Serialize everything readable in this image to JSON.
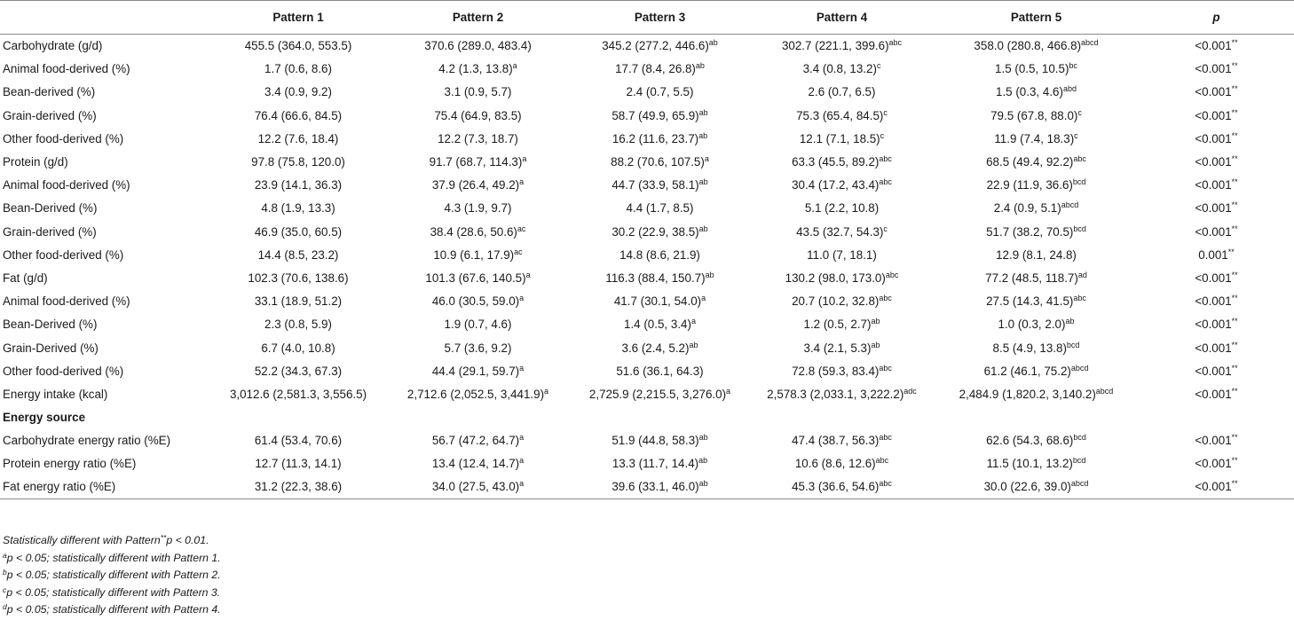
{
  "table": {
    "headers": [
      "",
      "Pattern 1",
      "Pattern 2",
      "Pattern 3",
      "Pattern 4",
      "Pattern 5",
      "p"
    ],
    "rows": [
      {
        "label": "Carbohydrate (g/d)",
        "cells": [
          {
            "v": "455.5 (364.0, 553.5)",
            "s": ""
          },
          {
            "v": "370.6 (289.0, 483.4)",
            "s": ""
          },
          {
            "v": "345.2 (277.2, 446.6)",
            "s": "ab"
          },
          {
            "v": "302.7 (221.1, 399.6)",
            "s": "abc"
          },
          {
            "v": "358.0 (280.8, 466.8)",
            "s": "abcd"
          },
          {
            "v": "<0.001",
            "s": "**"
          }
        ]
      },
      {
        "label": "Animal food-derived (%)",
        "cells": [
          {
            "v": "1.7 (0.6, 8.6)",
            "s": ""
          },
          {
            "v": "4.2 (1.3, 13.8)",
            "s": "a"
          },
          {
            "v": "17.7 (8.4, 26.8)",
            "s": "ab"
          },
          {
            "v": "3.4 (0.8, 13.2)",
            "s": "c"
          },
          {
            "v": "1.5 (0.5, 10.5)",
            "s": "bc"
          },
          {
            "v": "<0.001",
            "s": "**"
          }
        ]
      },
      {
        "label": "Bean-derived (%)",
        "cells": [
          {
            "v": "3.4 (0.9, 9.2)",
            "s": ""
          },
          {
            "v": "3.1 (0.9, 5.7)",
            "s": ""
          },
          {
            "v": "2.4 (0.7, 5.5)",
            "s": ""
          },
          {
            "v": "2.6 (0.7, 6.5)",
            "s": ""
          },
          {
            "v": "1.5 (0.3, 4.6)",
            "s": "abd"
          },
          {
            "v": "<0.001",
            "s": "**"
          }
        ]
      },
      {
        "label": "Grain-derived (%)",
        "cells": [
          {
            "v": "76.4 (66.6, 84.5)",
            "s": ""
          },
          {
            "v": "75.4 (64.9, 83.5)",
            "s": ""
          },
          {
            "v": "58.7 (49.9, 65.9)",
            "s": "ab"
          },
          {
            "v": "75.3 (65.4, 84.5)",
            "s": "c"
          },
          {
            "v": "79.5 (67.8, 88.0)",
            "s": "c"
          },
          {
            "v": "<0.001",
            "s": "**"
          }
        ]
      },
      {
        "label": "Other food-derived (%)",
        "cells": [
          {
            "v": "12.2 (7.6, 18.4)",
            "s": ""
          },
          {
            "v": "12.2 (7.3, 18.7)",
            "s": ""
          },
          {
            "v": "16.2 (11.6, 23.7)",
            "s": "ab"
          },
          {
            "v": "12.1 (7.1, 18.5)",
            "s": "c"
          },
          {
            "v": "11.9 (7.4, 18.3)",
            "s": "c"
          },
          {
            "v": "<0.001",
            "s": "**"
          }
        ]
      },
      {
        "label": "Protein (g/d)",
        "cells": [
          {
            "v": "97.8 (75.8, 120.0)",
            "s": ""
          },
          {
            "v": "91.7 (68.7, 114.3)",
            "s": "a"
          },
          {
            "v": "88.2 (70.6, 107.5)",
            "s": "a"
          },
          {
            "v": "63.3 (45.5, 89.2)",
            "s": "abc"
          },
          {
            "v": "68.5 (49.4, 92.2)",
            "s": "abc"
          },
          {
            "v": "<0.001",
            "s": "**"
          }
        ]
      },
      {
        "label": "Animal food-derived (%)",
        "cells": [
          {
            "v": "23.9 (14.1, 36.3)",
            "s": ""
          },
          {
            "v": "37.9 (26.4, 49.2)",
            "s": "a"
          },
          {
            "v": "44.7 (33.9, 58.1)",
            "s": "ab"
          },
          {
            "v": "30.4 (17.2, 43.4)",
            "s": "abc"
          },
          {
            "v": "22.9 (11.9, 36.6)",
            "s": "bcd"
          },
          {
            "v": "<0.001",
            "s": "**"
          }
        ]
      },
      {
        "label": "Bean-Derived (%)",
        "cells": [
          {
            "v": "4.8 (1.9, 13.3)",
            "s": ""
          },
          {
            "v": "4.3 (1.9, 9.7)",
            "s": ""
          },
          {
            "v": "4.4 (1.7, 8.5)",
            "s": ""
          },
          {
            "v": "5.1 (2.2, 10.8)",
            "s": ""
          },
          {
            "v": "2.4 (0.9, 5.1)",
            "s": "abcd"
          },
          {
            "v": "<0.001",
            "s": "**"
          }
        ]
      },
      {
        "label": "Grain-derived (%)",
        "cells": [
          {
            "v": "46.9 (35.0, 60.5)",
            "s": ""
          },
          {
            "v": "38.4 (28.6, 50.6)",
            "s": "ac"
          },
          {
            "v": "30.2 (22.9, 38.5)",
            "s": "ab"
          },
          {
            "v": "43.5 (32.7, 54.3)",
            "s": "c"
          },
          {
            "v": "51.7 (38.2, 70.5)",
            "s": "bcd"
          },
          {
            "v": "<0.001",
            "s": "**"
          }
        ]
      },
      {
        "label": "Other food-derived (%)",
        "cells": [
          {
            "v": "14.4 (8.5, 23.2)",
            "s": ""
          },
          {
            "v": "10.9 (6.1, 17.9)",
            "s": "ac"
          },
          {
            "v": "14.8 (8.6, 21.9)",
            "s": ""
          },
          {
            "v": "11.0 (7, 18.1)",
            "s": ""
          },
          {
            "v": "12.9 (8.1, 24.8)",
            "s": ""
          },
          {
            "v": "0.001",
            "s": "**"
          }
        ]
      },
      {
        "label": "Fat (g/d)",
        "cells": [
          {
            "v": "102.3 (70.6, 138.6)",
            "s": ""
          },
          {
            "v": "101.3 (67.6, 140.5)",
            "s": "a"
          },
          {
            "v": "116.3 (88.4, 150.7)",
            "s": "ab"
          },
          {
            "v": "130.2 (98.0, 173.0)",
            "s": "abc"
          },
          {
            "v": "77.2 (48.5, 118.7)",
            "s": "ad"
          },
          {
            "v": "<0.001",
            "s": "**"
          }
        ]
      },
      {
        "label": "Animal food-derived (%)",
        "cells": [
          {
            "v": "33.1 (18.9, 51.2)",
            "s": ""
          },
          {
            "v": "46.0 (30.5, 59.0)",
            "s": "a"
          },
          {
            "v": "41.7 (30.1, 54.0)",
            "s": "a"
          },
          {
            "v": "20.7 (10.2, 32.8)",
            "s": "abc"
          },
          {
            "v": "27.5 (14.3, 41.5)",
            "s": "abc"
          },
          {
            "v": "<0.001",
            "s": "**"
          }
        ]
      },
      {
        "label": "Bean-Derived (%)",
        "cells": [
          {
            "v": "2.3 (0.8, 5.9)",
            "s": ""
          },
          {
            "v": "1.9 (0.7, 4.6)",
            "s": ""
          },
          {
            "v": "1.4 (0.5, 3.4)",
            "s": "a"
          },
          {
            "v": "1.2 (0.5, 2.7)",
            "s": "ab"
          },
          {
            "v": "1.0 (0.3, 2.0)",
            "s": "ab"
          },
          {
            "v": "<0.001",
            "s": "**"
          }
        ]
      },
      {
        "label": "Grain-Derived (%)",
        "cells": [
          {
            "v": "6.7 (4.0, 10.8)",
            "s": ""
          },
          {
            "v": "5.7 (3.6, 9.2)",
            "s": ""
          },
          {
            "v": "3.6 (2.4, 5.2)",
            "s": "ab"
          },
          {
            "v": "3.4 (2.1, 5.3)",
            "s": "ab"
          },
          {
            "v": "8.5 (4.9, 13.8)",
            "s": "bcd"
          },
          {
            "v": "<0.001",
            "s": "**"
          }
        ]
      },
      {
        "label": "Other food-derived (%)",
        "cells": [
          {
            "v": "52.2 (34.3, 67.3)",
            "s": ""
          },
          {
            "v": "44.4 (29.1, 59.7)",
            "s": "a"
          },
          {
            "v": "51.6 (36.1, 64.3)",
            "s": ""
          },
          {
            "v": "72.8 (59.3, 83.4)",
            "s": "abc"
          },
          {
            "v": "61.2 (46.1, 75.2)",
            "s": "abcd"
          },
          {
            "v": "<0.001",
            "s": "**"
          }
        ]
      },
      {
        "label": "Energy intake (kcal)",
        "cells": [
          {
            "v": "3,012.6 (2,581.3, 3,556.5)",
            "s": ""
          },
          {
            "v": "2,712.6 (2,052.5, 3,441.9)",
            "s": "a"
          },
          {
            "v": "2,725.9 (2,215.5, 3,276.0)",
            "s": "a"
          },
          {
            "v": "2,578.3 (2,033.1, 3,222.2)",
            "s": "adc"
          },
          {
            "v": "2,484.9 (1,820.2, 3,140.2)",
            "s": "abcd"
          },
          {
            "v": "<0.001",
            "s": "**"
          }
        ]
      },
      {
        "label": "Energy source",
        "section": true,
        "cells": [
          {
            "v": "",
            "s": ""
          },
          {
            "v": "",
            "s": ""
          },
          {
            "v": "",
            "s": ""
          },
          {
            "v": "",
            "s": ""
          },
          {
            "v": "",
            "s": ""
          },
          {
            "v": "",
            "s": ""
          }
        ]
      },
      {
        "label": "Carbohydrate energy ratio (%E)",
        "cells": [
          {
            "v": "61.4 (53.4, 70.6)",
            "s": ""
          },
          {
            "v": "56.7 (47.2, 64.7)",
            "s": "a"
          },
          {
            "v": "51.9 (44.8, 58.3)",
            "s": "ab"
          },
          {
            "v": "47.4 (38.7, 56.3)",
            "s": "abc"
          },
          {
            "v": "62.6 (54.3, 68.6)",
            "s": "bcd"
          },
          {
            "v": "<0.001",
            "s": "**"
          }
        ]
      },
      {
        "label": "Protein energy ratio (%E)",
        "cells": [
          {
            "v": "12.7 (11.3, 14.1)",
            "s": ""
          },
          {
            "v": "13.4 (12.4, 14.7)",
            "s": "a"
          },
          {
            "v": "13.3 (11.7, 14.4)",
            "s": "ab"
          },
          {
            "v": "10.6 (8.6, 12.6)",
            "s": "abc"
          },
          {
            "v": "11.5 (10.1, 13.2)",
            "s": "bcd"
          },
          {
            "v": "<0.001",
            "s": "**"
          }
        ]
      },
      {
        "label": "Fat energy ratio (%E)",
        "cells": [
          {
            "v": "31.2 (22.3, 38.6)",
            "s": ""
          },
          {
            "v": "34.0 (27.5, 43.0)",
            "s": "a"
          },
          {
            "v": "39.6 (33.1, 46.0)",
            "s": "ab"
          },
          {
            "v": "45.3 (36.6, 54.6)",
            "s": "abc"
          },
          {
            "v": "30.0 (22.6, 39.0)",
            "s": "abcd"
          },
          {
            "v": "<0.001",
            "s": "**"
          }
        ]
      }
    ]
  },
  "notes": [
    {
      "pre": "Statistically different with Pattern",
      "sup": "**",
      "post": "p < 0.01."
    },
    {
      "pre": "",
      "sup": "a",
      "post": "p < 0.05; statistically different with Pattern 1."
    },
    {
      "pre": "",
      "sup": "b",
      "post": "p < 0.05; statistically different with Pattern 2."
    },
    {
      "pre": "",
      "sup": "c",
      "post": "p < 0.05; statistically different with Pattern 3."
    },
    {
      "pre": "",
      "sup": "d",
      "post": "p < 0.05; statistically different with Pattern 4."
    }
  ]
}
